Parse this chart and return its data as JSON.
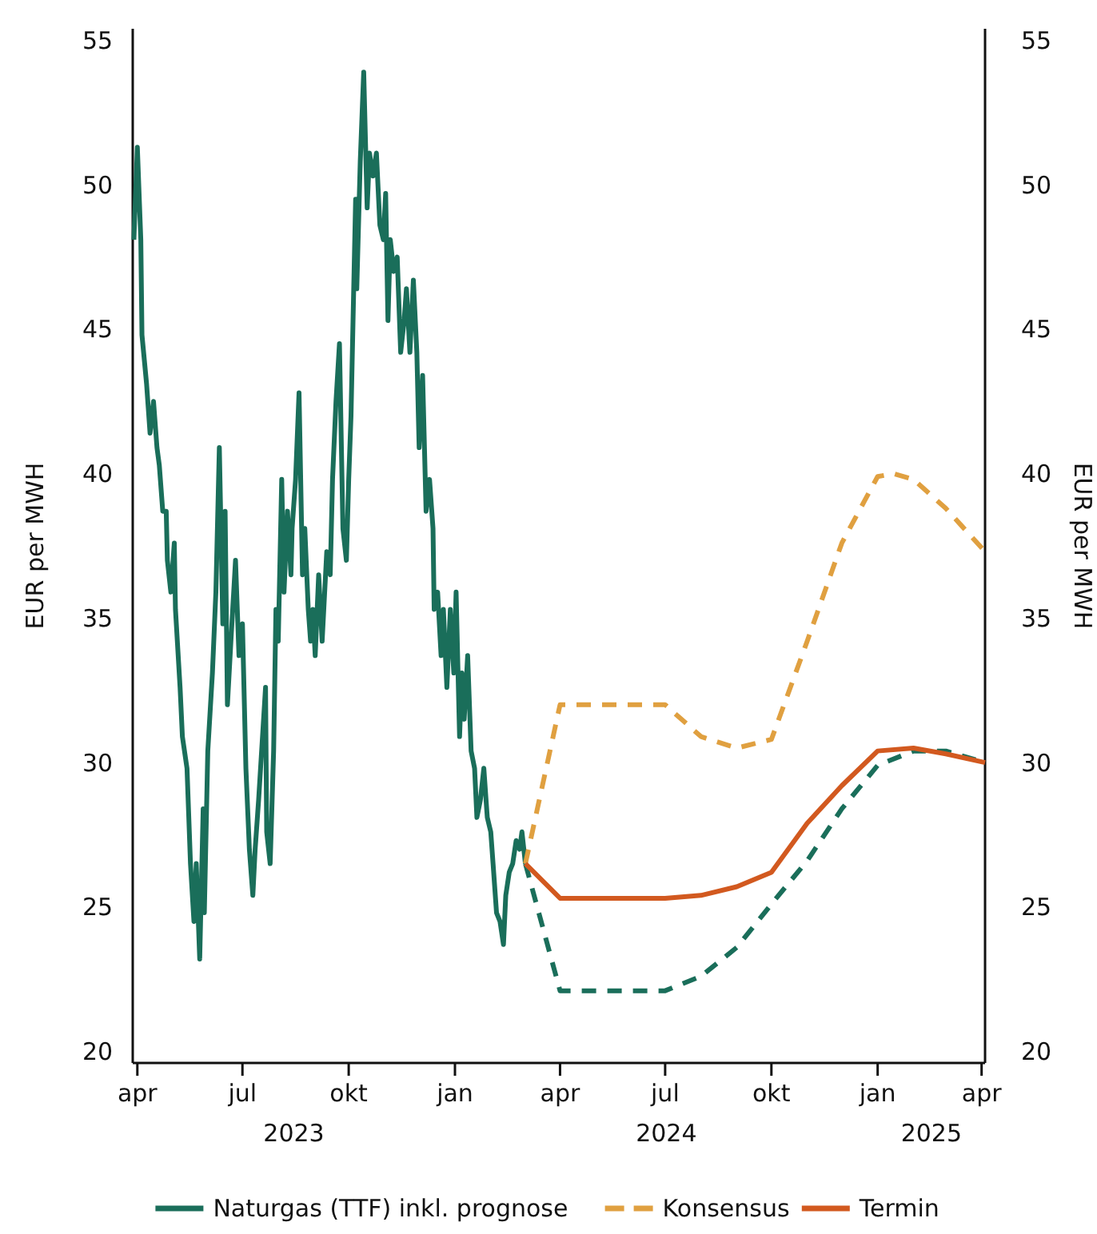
{
  "chart_data": {
    "type": "line",
    "ylabel": "EUR per MWH",
    "y2label": "EUR per MWH",
    "xlim": [
      "2023-03-28",
      "2025-04-04"
    ],
    "ylim": [
      19.6,
      55.4
    ],
    "yticks": [
      20,
      25,
      30,
      35,
      40,
      45,
      50,
      55
    ],
    "y2lim": [
      19.6,
      55.4
    ],
    "y2ticks": [
      20,
      25,
      30,
      35,
      40,
      45,
      50,
      55
    ],
    "xticks": [
      {
        "value": "2023-04-01",
        "label": "apr"
      },
      {
        "value": "2023-07-01",
        "label": "jul"
      },
      {
        "value": "2023-10-01",
        "label": "okt"
      },
      {
        "value": "2024-01-01",
        "label": "jan"
      },
      {
        "value": "2024-04-01",
        "label": "apr"
      },
      {
        "value": "2024-07-01",
        "label": "jul"
      },
      {
        "value": "2024-10-01",
        "label": "okt"
      },
      {
        "value": "2025-01-01",
        "label": "jan"
      },
      {
        "value": "2025-04-01",
        "label": "apr"
      }
    ],
    "annotations": [
      "2023",
      "2024",
      "2025"
    ],
    "grid": false,
    "legend": "bottom",
    "series": [
      {
        "name": "Naturgas (TTF) inkl. prognose",
        "color": "#1a6e5a",
        "line_style": "solid",
        "x": [
          "2023-03-29",
          "2023-04-01",
          "2023-04-04",
          "2023-04-05",
          "2023-04-09",
          "2023-04-12",
          "2023-04-15",
          "2023-04-18",
          "2023-04-20",
          "2023-04-23",
          "2023-04-26",
          "2023-04-27",
          "2023-04-30",
          "2023-05-03",
          "2023-05-04",
          "2023-05-08",
          "2023-05-10",
          "2023-05-14",
          "2023-05-17",
          "2023-05-20",
          "2023-05-22",
          "2023-05-25",
          "2023-05-28",
          "2023-05-29",
          "2023-06-01",
          "2023-06-05",
          "2023-06-08",
          "2023-06-11",
          "2023-06-14",
          "2023-06-16",
          "2023-06-18",
          "2023-06-21",
          "2023-06-25",
          "2023-06-28",
          "2023-07-01",
          "2023-07-04",
          "2023-07-07",
          "2023-07-10",
          "2023-07-12",
          "2023-07-15",
          "2023-07-21",
          "2023-07-22",
          "2023-07-25",
          "2023-07-28",
          "2023-07-30",
          "2023-08-01",
          "2023-08-04",
          "2023-08-06",
          "2023-08-09",
          "2023-08-12",
          "2023-08-13",
          "2023-08-16",
          "2023-08-19",
          "2023-08-22",
          "2023-08-24",
          "2023-08-27",
          "2023-08-29",
          "2023-08-31",
          "2023-09-02",
          "2023-09-05",
          "2023-09-08",
          "2023-09-12",
          "2023-09-15",
          "2023-09-17",
          "2023-09-20",
          "2023-09-23",
          "2023-09-26",
          "2023-09-29",
          "2023-10-01",
          "2023-10-03",
          "2023-10-07",
          "2023-10-08",
          "2023-10-11",
          "2023-10-14",
          "2023-10-17",
          "2023-10-19",
          "2023-10-22",
          "2023-10-25",
          "2023-10-28",
          "2023-10-31",
          "2023-11-02",
          "2023-11-04",
          "2023-11-06",
          "2023-11-09",
          "2023-11-12",
          "2023-11-15",
          "2023-11-18",
          "2023-11-20",
          "2023-11-23",
          "2023-11-26",
          "2023-11-29",
          "2023-12-01",
          "2023-12-04",
          "2023-12-07",
          "2023-12-10",
          "2023-12-13",
          "2023-12-14",
          "2023-12-17",
          "2023-12-20",
          "2023-12-22",
          "2023-12-25",
          "2023-12-28",
          "2023-12-31",
          "2024-01-02",
          "2024-01-05",
          "2024-01-07",
          "2024-01-09",
          "2024-01-12",
          "2024-01-15",
          "2024-01-18",
          "2024-01-20",
          "2024-01-23",
          "2024-01-26",
          "2024-01-29",
          "2024-02-01",
          "2024-02-03",
          "2024-02-06",
          "2024-02-09",
          "2024-02-12",
          "2024-02-14",
          "2024-02-17",
          "2024-02-20",
          "2024-02-23",
          "2024-02-26",
          "2024-02-28",
          "2024-03-02"
        ],
        "values": [
          48.1,
          51.3,
          48.1,
          44.8,
          43.1,
          41.4,
          42.5,
          40.9,
          40.3,
          38.7,
          38.7,
          37.0,
          35.9,
          37.6,
          35.3,
          32.6,
          30.9,
          29.8,
          26.5,
          24.5,
          26.5,
          23.2,
          28.4,
          24.8,
          30.4,
          33.1,
          35.9,
          40.9,
          34.8,
          38.7,
          32.0,
          34.2,
          37.0,
          33.7,
          34.8,
          29.8,
          27.0,
          25.4,
          27.0,
          28.7,
          32.6,
          27.6,
          26.5,
          30.4,
          35.3,
          34.2,
          39.8,
          35.9,
          38.7,
          36.5,
          38.1,
          39.8,
          42.8,
          36.5,
          38.1,
          35.3,
          34.2,
          35.3,
          33.7,
          36.5,
          34.2,
          37.3,
          36.5,
          39.8,
          42.5,
          44.5,
          38.1,
          37.0,
          39.8,
          42.0,
          49.5,
          46.4,
          50.8,
          53.9,
          49.2,
          51.1,
          50.3,
          51.1,
          48.6,
          48.1,
          49.7,
          45.3,
          48.1,
          47.0,
          47.5,
          44.2,
          45.3,
          46.4,
          44.2,
          46.7,
          44.2,
          40.9,
          43.4,
          38.7,
          39.8,
          38.1,
          35.3,
          35.9,
          33.7,
          35.3,
          32.6,
          35.3,
          33.1,
          35.9,
          30.9,
          33.1,
          31.5,
          33.7,
          30.4,
          29.8,
          28.1,
          28.7,
          29.8,
          28.1,
          27.6,
          26.5,
          24.8,
          24.5,
          23.7,
          25.4,
          26.2,
          26.5,
          27.3,
          27.0,
          27.6,
          26.5
        ]
      },
      {
        "color": "#1a6e5a",
        "line_style": "dashed",
        "x": [
          "2024-03-02",
          "2024-04-01",
          "2024-07-01",
          "2024-08-01",
          "2024-09-01",
          "2024-10-01",
          "2024-11-01",
          "2024-12-01",
          "2025-01-01",
          "2025-02-01",
          "2025-03-01",
          "2025-04-04"
        ],
        "values": [
          26.5,
          22.1,
          22.1,
          22.6,
          23.6,
          25.1,
          26.6,
          28.4,
          29.9,
          30.4,
          30.4,
          30.0
        ]
      },
      {
        "name": "Konsensus",
        "color": "#e0a040",
        "line_style": "dashed",
        "x": [
          "2024-03-02",
          "2024-04-01",
          "2024-07-01",
          "2024-08-01",
          "2024-09-01",
          "2024-10-01",
          "2024-11-01",
          "2024-12-01",
          "2025-01-01",
          "2025-01-15",
          "2025-02-01",
          "2025-03-01",
          "2025-04-04"
        ],
        "values": [
          26.5,
          32.0,
          32.0,
          30.9,
          30.5,
          30.8,
          34.2,
          37.6,
          39.9,
          40.0,
          39.8,
          38.8,
          37.3
        ]
      },
      {
        "name": "Termin",
        "color": "#d2591f",
        "line_style": "solid",
        "x": [
          "2024-03-02",
          "2024-04-01",
          "2024-07-01",
          "2024-08-01",
          "2024-09-01",
          "2024-10-01",
          "2024-11-01",
          "2024-12-01",
          "2025-01-01",
          "2025-02-01",
          "2025-03-01",
          "2025-04-04"
        ],
        "values": [
          26.5,
          25.3,
          25.3,
          25.4,
          25.7,
          26.2,
          27.9,
          29.2,
          30.4,
          30.5,
          30.3,
          30.0
        ]
      }
    ]
  }
}
